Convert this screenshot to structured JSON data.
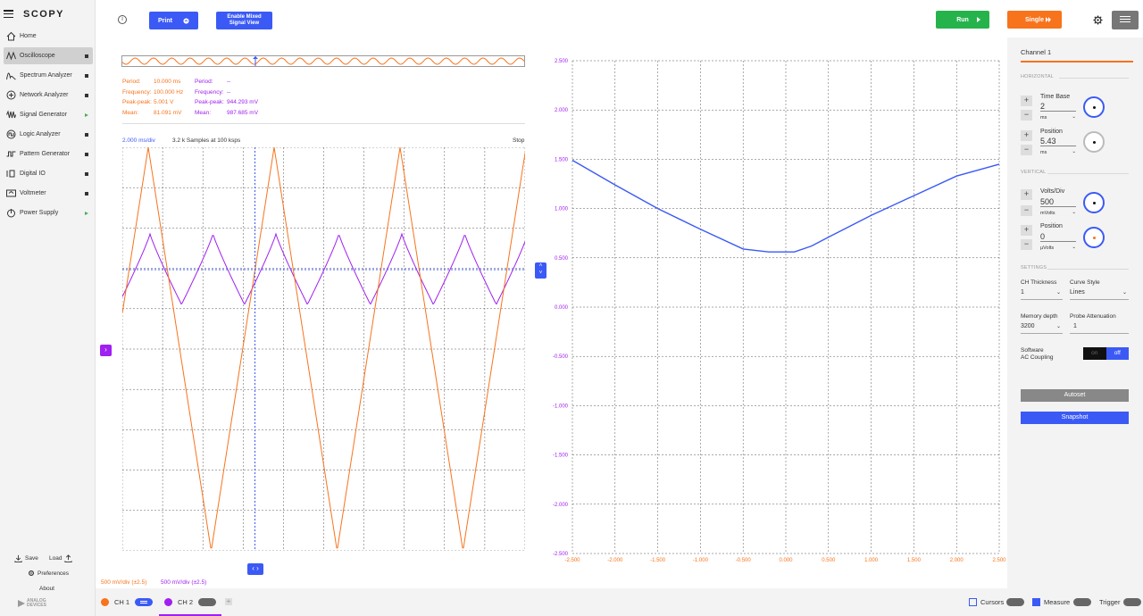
{
  "app": {
    "name": "SCOPY",
    "brand": "ANALOG DEVICES"
  },
  "nav": {
    "items": [
      {
        "label": "Home",
        "icon": "home-icon",
        "indicator": "none"
      },
      {
        "label": "Oscilloscope",
        "icon": "oscilloscope-icon",
        "indicator": "stopped",
        "active": true
      },
      {
        "label": "Spectrum Analyzer",
        "icon": "spectrum-icon",
        "indicator": "stopped"
      },
      {
        "label": "Network Analyzer",
        "icon": "network-icon",
        "indicator": "stopped"
      },
      {
        "label": "Signal Generator",
        "icon": "signal-icon",
        "indicator": "running"
      },
      {
        "label": "Logic Analyzer",
        "icon": "logic-icon",
        "indicator": "stopped"
      },
      {
        "label": "Pattern Generator",
        "icon": "pattern-icon",
        "indicator": "stopped"
      },
      {
        "label": "Digital IO",
        "icon": "digitalio-icon",
        "indicator": "stopped"
      },
      {
        "label": "Voltmeter",
        "icon": "voltmeter-icon",
        "indicator": "stopped"
      },
      {
        "label": "Power Supply",
        "icon": "power-icon",
        "indicator": "running"
      }
    ],
    "save_label": "Save",
    "load_label": "Load",
    "preferences_label": "Preferences",
    "about_label": "About"
  },
  "toolbar": {
    "print_label": "Print",
    "mixed_signal_label_1": "Enable Mixed",
    "mixed_signal_label_2": "Signal View",
    "run_label": "Run",
    "single_label": "Single"
  },
  "measurements": {
    "ch1": {
      "period_label": "Period:",
      "period": "10.000 ms",
      "frequency_label": "Frequency:",
      "frequency": "100.000 Hz",
      "peak_label": "Peak-peak:",
      "peak": "5.001 V",
      "mean_label": "Mean:",
      "mean": "81.091 mV"
    },
    "ch2": {
      "period_label": "Period:",
      "period": "--",
      "frequency_label": "Frequency:",
      "frequency": "--",
      "peak_label": "Peak-peak:",
      "peak": "944.293 mV",
      "mean_label": "Mean:",
      "mean": "987.685 mV"
    }
  },
  "time_plot": {
    "timebase": "2.000 ms/div",
    "samples": "3.2 k Samples at 100 ksps",
    "status": "Stop",
    "ch1_scale": "500 mV/div (±2.5)",
    "ch2_scale": "500 mV/div (±2.5)"
  },
  "colors": {
    "ch1": "#f7731c",
    "ch2": "#a020f0",
    "xy": "#3b5af5",
    "accent": "#3b5af5",
    "run": "#27b34c",
    "single": "#f7731c"
  },
  "chart_data": {
    "type": "line",
    "title": "",
    "x_axis": {
      "min": -2.5,
      "max": 2.5,
      "ticks": [
        "-2.500",
        "-2.000",
        "-1.500",
        "-1.000",
        "-0.500",
        "0.000",
        "0.500",
        "1.000",
        "1.500",
        "2.000",
        "2.500"
      ]
    },
    "y_axis": {
      "min": -2.5,
      "max": 2.5,
      "ticks": [
        "2.500",
        "2.000",
        "1.500",
        "1.000",
        "0.500",
        "0.000",
        "-0.500",
        "-1.000",
        "-1.500",
        "-2.000",
        "-2.500"
      ]
    },
    "series": [
      {
        "name": "XY",
        "x": [
          -2.5,
          -2.0,
          -1.5,
          -1.0,
          -0.5,
          -0.2,
          0.0,
          0.1,
          0.3,
          0.5,
          1.0,
          1.5,
          2.0,
          2.5
        ],
        "y": [
          1.49,
          1.24,
          1.0,
          0.79,
          0.59,
          0.56,
          0.56,
          0.56,
          0.62,
          0.71,
          0.93,
          1.13,
          1.33,
          1.45
        ]
      }
    ]
  },
  "channel_settings": {
    "title": "Channel 1",
    "horizontal_label": "HORIZONTAL",
    "time_base_label": "Time Base",
    "time_base_value": "2",
    "time_base_unit": "ms",
    "h_position_label": "Position",
    "h_position_value": "5.43",
    "h_position_unit": "ms",
    "vertical_label": "VERTICAL",
    "volts_div_label": "Volts/Div",
    "volts_div_value": "500",
    "volts_div_unit": "mVolts",
    "v_position_label": "Position",
    "v_position_value": "0",
    "v_position_unit": "µVolts",
    "settings_label": "SETTINGS",
    "ch_thickness_label": "CH Thickness",
    "ch_thickness_value": "1",
    "curve_style_label": "Curve Style",
    "curve_style_value": "Lines",
    "memory_depth_label": "Memory depth",
    "memory_depth_value": "3200",
    "probe_atten_label": "Probe Attenuation",
    "probe_atten_value": "1",
    "ac_coupling_label_1": "Software",
    "ac_coupling_label_2": "AC Coupling",
    "ac_on": "on",
    "ac_off": "off",
    "autoset_label": "Autoset",
    "snapshot_label": "Snapshot"
  },
  "bottom": {
    "ch1_label": "CH 1",
    "ch2_label": "CH 2",
    "add_label": "+",
    "cursors_label": "Cursors",
    "measure_label": "Measure",
    "trigger_label": "Trigger"
  }
}
